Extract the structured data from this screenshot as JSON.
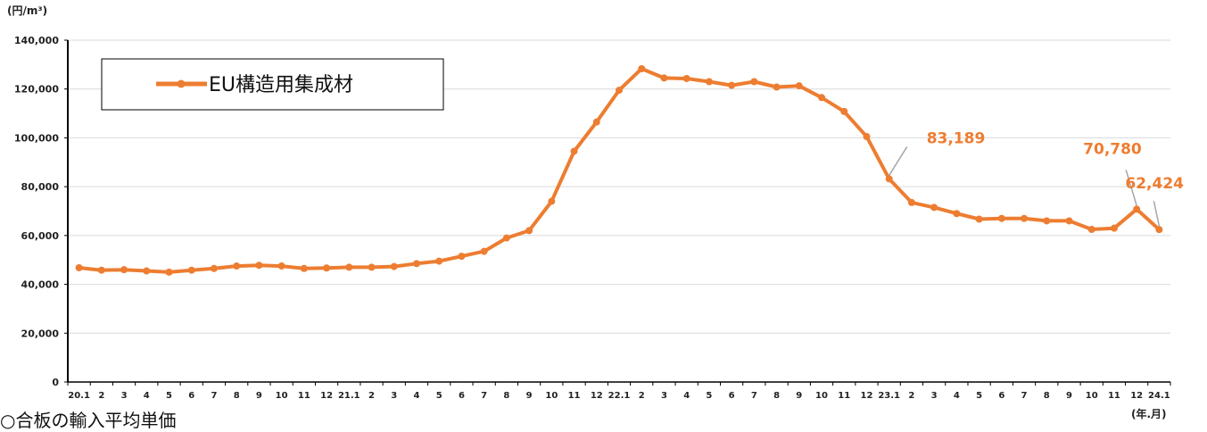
{
  "chart_data": {
    "type": "line",
    "y_unit_label": "(円/m³)",
    "x_unit_label": "(年.月)",
    "ylim": [
      0,
      140000
    ],
    "y_ticks": [
      "0",
      "20,000",
      "40,000",
      "60,000",
      "80,000",
      "100,000",
      "120,000",
      "140,000"
    ],
    "grid": true,
    "legend_position": "top-left",
    "categories": [
      "20.1",
      "2",
      "3",
      "4",
      "5",
      "6",
      "7",
      "8",
      "9",
      "10",
      "11",
      "12",
      "21.1",
      "2",
      "3",
      "4",
      "5",
      "6",
      "7",
      "8",
      "9",
      "10",
      "11",
      "12",
      "22.1",
      "2",
      "3",
      "4",
      "5",
      "6",
      "7",
      "8",
      "9",
      "10",
      "11",
      "12",
      "23.1",
      "2",
      "3",
      "4",
      "5",
      "6",
      "7",
      "8",
      "9",
      "10",
      "11",
      "12",
      "24.1"
    ],
    "series": [
      {
        "name": "EU構造用集成材",
        "color": "#ED7D31",
        "values": [
          46800,
          45800,
          46000,
          45500,
          45000,
          45800,
          46500,
          47500,
          47800,
          47500,
          46500,
          46700,
          47000,
          47000,
          47300,
          48500,
          49500,
          51500,
          53500,
          59000,
          62000,
          74000,
          94500,
          106500,
          119500,
          128300,
          124500,
          124300,
          123000,
          121500,
          123000,
          120800,
          121300,
          116500,
          110800,
          100500,
          83189,
          73500,
          71500,
          69000,
          66700,
          67000,
          67000,
          66000,
          66000,
          62500,
          63000,
          70780,
          62424
        ]
      }
    ],
    "annotations": [
      {
        "text": "83,189",
        "index": 36
      },
      {
        "text": "70,780",
        "index": 47
      },
      {
        "text": "62,424",
        "index": 48
      }
    ]
  },
  "cutoff_text": "○合板の輸入平均単価"
}
